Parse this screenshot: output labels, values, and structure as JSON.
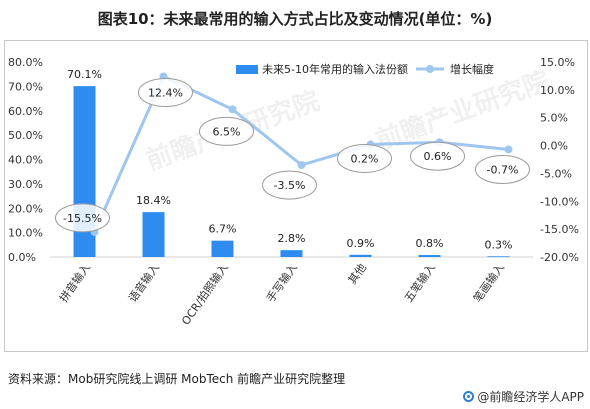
{
  "title": "图表10：未来最常用的输入方式占比及变动情况(单位：%)",
  "source": "资料来源：Mob研究院线上调研 MobTech 前瞻产业研究院整理",
  "brand": "@前瞻经济学人APP",
  "watermark": "前瞻产业研究院",
  "colors": {
    "bar": "#2e8cf0",
    "line": "#9ec6ee",
    "marker": "#9ec6ee"
  },
  "chart_data": {
    "type": "bar",
    "categories": [
      "拼音输入",
      "语音输入",
      "OCR/拍照输入",
      "手写输入",
      "其他",
      "五笔输入",
      "笔画输入"
    ],
    "series": [
      {
        "name": "未来5-10年常用的输入法份额",
        "type": "bar",
        "axis": "left",
        "values": [
          70.1,
          18.4,
          6.7,
          2.8,
          0.9,
          0.8,
          0.3
        ],
        "labels": [
          "70.1%",
          "18.4%",
          "6.7%",
          "2.8%",
          "0.9%",
          "0.8%",
          "0.3%"
        ]
      },
      {
        "name": "增长幅度",
        "type": "line",
        "axis": "right",
        "values": [
          -15.5,
          12.4,
          6.5,
          -3.5,
          0.2,
          0.6,
          -0.7
        ],
        "labels": [
          "-15.5%",
          "12.4%",
          "6.5%",
          "-3.5%",
          "0.2%",
          "0.6%",
          "-0.7%"
        ]
      }
    ],
    "ylim_left": [
      0,
      80
    ],
    "ylim_right": [
      -20,
      15
    ],
    "yticks_left": [
      "0.0%",
      "10.0%",
      "20.0%",
      "30.0%",
      "40.0%",
      "50.0%",
      "60.0%",
      "70.0%",
      "80.0%"
    ],
    "yticks_right": [
      "-20.0%",
      "-15.0%",
      "-10.0%",
      "-5.0%",
      "0.0%",
      "5.0%",
      "10.0%",
      "15.0%"
    ],
    "grid": false,
    "legend_position": "top-right"
  }
}
